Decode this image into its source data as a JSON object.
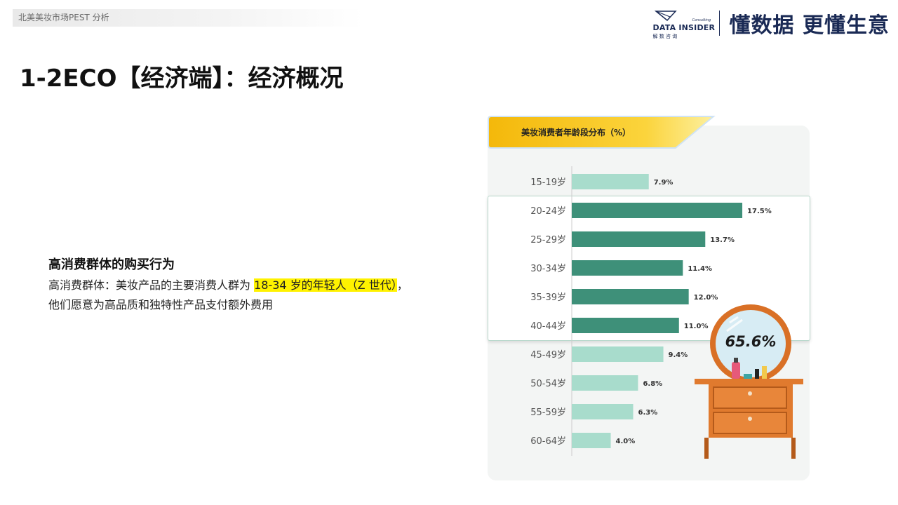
{
  "header": {
    "breadcrumb": "北美美妆市场PEST 分析",
    "logo_text": "DATA INSIDER",
    "logo_sub": "解 数 咨 询",
    "logo_consulting": "Consulting",
    "slogan": "懂数据 更懂生意"
  },
  "page_title": "1-2ECO【经济端】：经济概况",
  "content": {
    "heading": "高消费群体的购买行为",
    "text_before": "高消费群体：美妆产品的主要消费人群为 ",
    "highlight": "18-34 岁的年轻人（Z 世代）",
    "text_after": "，他们愿意为高品质和独特性产品支付额外费用"
  },
  "chart_data": {
    "type": "bar",
    "orientation": "horizontal",
    "title": "美妆消费者年龄段分布（%）",
    "categories": [
      "15-19岁",
      "20-24岁",
      "25-29岁",
      "30-34岁",
      "35-39岁",
      "40-44岁",
      "45-49岁",
      "50-54岁",
      "55-59岁",
      "60-64岁"
    ],
    "values": [
      7.9,
      17.5,
      13.7,
      11.4,
      12.0,
      11.0,
      9.4,
      6.8,
      6.3,
      4.0
    ],
    "value_labels": [
      "7.9%",
      "17.5%",
      "13.7%",
      "11.4%",
      "12.0%",
      "11.0%",
      "9.4%",
      "6.8%",
      "6.3%",
      "4.0%"
    ],
    "highlighted_categories": [
      "20-24岁",
      "25-29岁",
      "30-34岁",
      "35-39岁",
      "40-44岁"
    ],
    "highlight_total_label": "65.6%",
    "xlim": [
      0,
      18
    ],
    "grid": false,
    "colors": {
      "highlight": "#3e9079",
      "normal": "#a8dccc"
    }
  }
}
